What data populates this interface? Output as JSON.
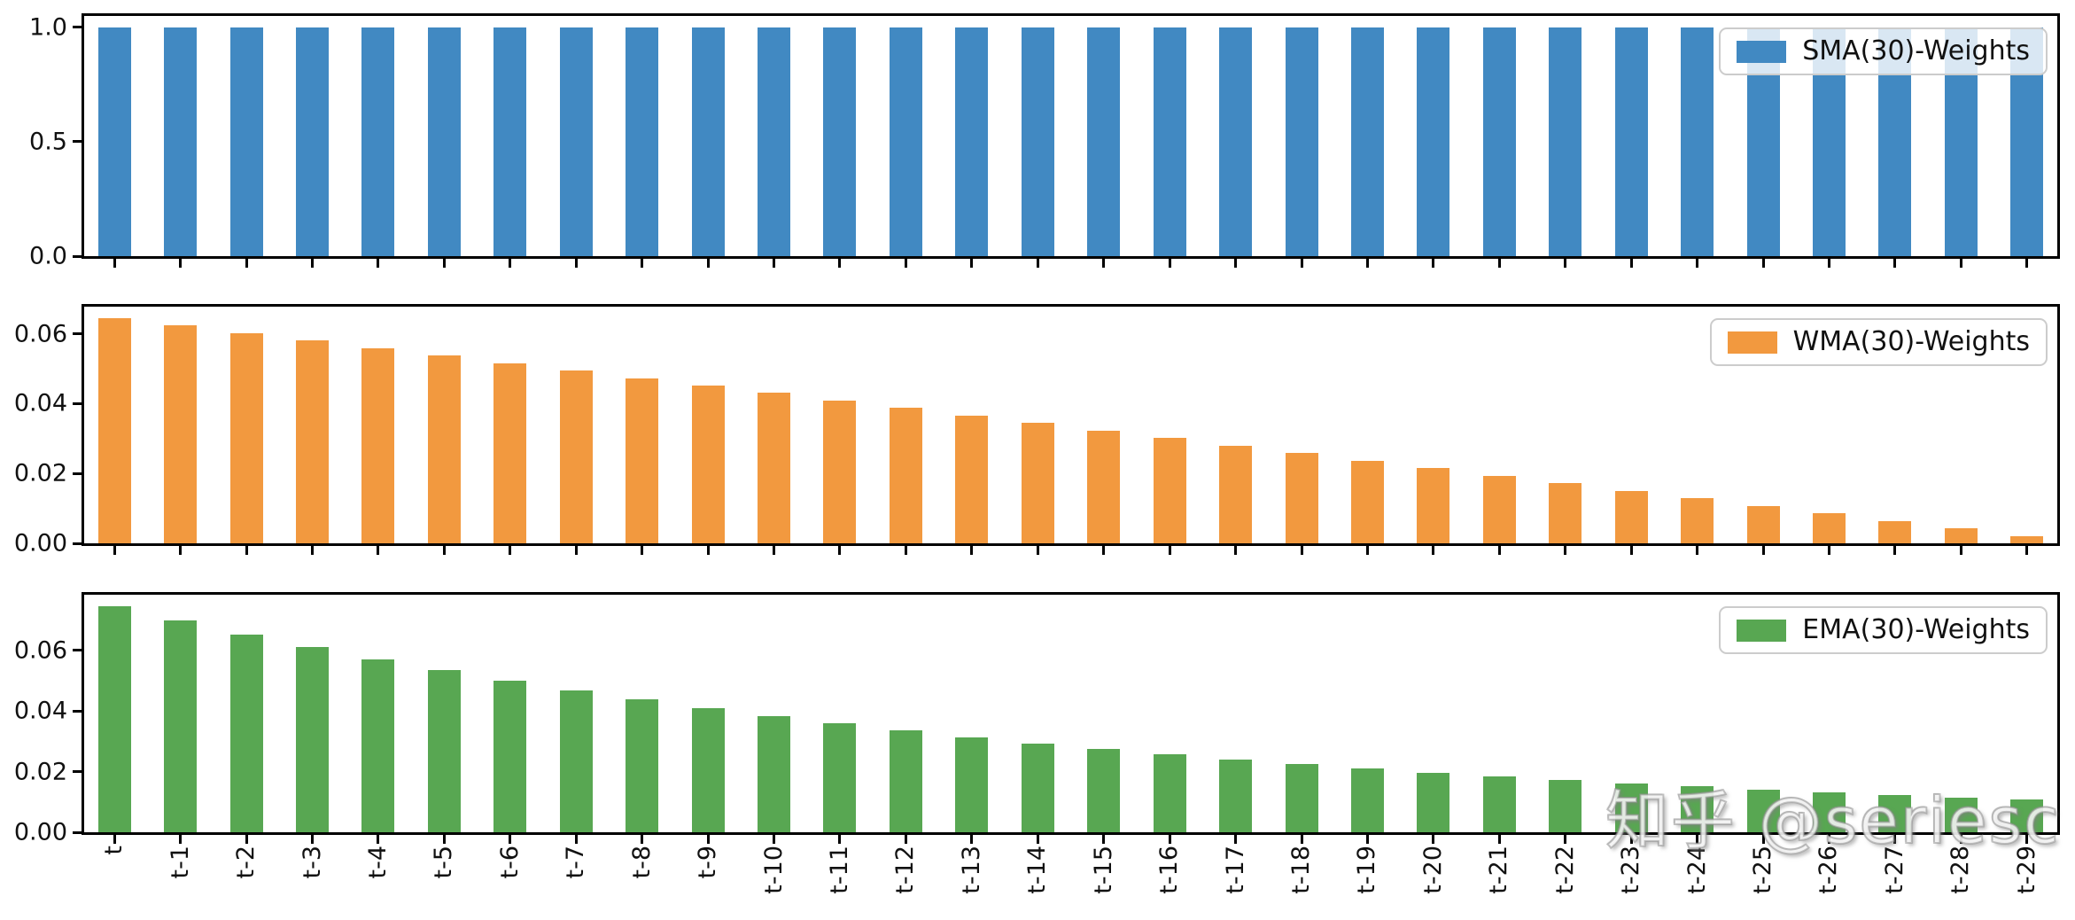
{
  "watermark": "知乎 @seriesc",
  "colors": {
    "sma": "#4189c2",
    "wma": "#f2993f",
    "ema": "#58a752",
    "axis": "#000000",
    "legend_border": "#cccccc",
    "legend_background": "rgba(255,255,255,0.8)"
  },
  "chart_data": [
    {
      "type": "bar",
      "legend": "SMA(30)-Weights",
      "legend_position": "upper right",
      "grid": false,
      "color_key": "sma",
      "categories": [
        "t",
        "t-1",
        "t-2",
        "t-3",
        "t-4",
        "t-5",
        "t-6",
        "t-7",
        "t-8",
        "t-9",
        "t-10",
        "t-11",
        "t-12",
        "t-13",
        "t-14",
        "t-15",
        "t-16",
        "t-17",
        "t-18",
        "t-19",
        "t-20",
        "t-21",
        "t-22",
        "t-23",
        "t-24",
        "t-25",
        "t-26",
        "t-27",
        "t-28",
        "t-29"
      ],
      "values": [
        1.0,
        1.0,
        1.0,
        1.0,
        1.0,
        1.0,
        1.0,
        1.0,
        1.0,
        1.0,
        1.0,
        1.0,
        1.0,
        1.0,
        1.0,
        1.0,
        1.0,
        1.0,
        1.0,
        1.0,
        1.0,
        1.0,
        1.0,
        1.0,
        1.0,
        1.0,
        1.0,
        1.0,
        1.0,
        1.0
      ],
      "yticks": [
        0.0,
        0.5,
        1.0
      ],
      "ytick_labels": [
        "0.0",
        "0.5",
        "1.0"
      ],
      "ylim": [
        0,
        1.05
      ],
      "x_labels_visible": false
    },
    {
      "type": "bar",
      "legend": "WMA(30)-Weights",
      "legend_position": "upper right",
      "grid": false,
      "color_key": "wma",
      "categories": [
        "t",
        "t-1",
        "t-2",
        "t-3",
        "t-4",
        "t-5",
        "t-6",
        "t-7",
        "t-8",
        "t-9",
        "t-10",
        "t-11",
        "t-12",
        "t-13",
        "t-14",
        "t-15",
        "t-16",
        "t-17",
        "t-18",
        "t-19",
        "t-20",
        "t-21",
        "t-22",
        "t-23",
        "t-24",
        "t-25",
        "t-26",
        "t-27",
        "t-28",
        "t-29"
      ],
      "values": [
        0.06452,
        0.06237,
        0.06022,
        0.05806,
        0.05591,
        0.05376,
        0.05161,
        0.04946,
        0.04731,
        0.04516,
        0.04301,
        0.04086,
        0.03871,
        0.03656,
        0.03441,
        0.03226,
        0.03011,
        0.02796,
        0.02581,
        0.02366,
        0.02151,
        0.01935,
        0.0172,
        0.01505,
        0.0129,
        0.01075,
        0.0086,
        0.00645,
        0.0043,
        0.00215
      ],
      "yticks": [
        0.0,
        0.02,
        0.04,
        0.06
      ],
      "ytick_labels": [
        "0.00",
        "0.02",
        "0.04",
        "0.06"
      ],
      "ylim": [
        0,
        0.06774
      ],
      "x_labels_visible": false
    },
    {
      "type": "bar",
      "legend": "EMA(30)-Weights",
      "legend_position": "upper right",
      "grid": false,
      "color_key": "ema",
      "categories": [
        "t",
        "t-1",
        "t-2",
        "t-3",
        "t-4",
        "t-5",
        "t-6",
        "t-7",
        "t-8",
        "t-9",
        "t-10",
        "t-11",
        "t-12",
        "t-13",
        "t-14",
        "t-15",
        "t-16",
        "t-17",
        "t-18",
        "t-19",
        "t-20",
        "t-21",
        "t-22",
        "t-23",
        "t-24",
        "t-25",
        "t-26",
        "t-27",
        "t-28",
        "t-29"
      ],
      "values": [
        0.07461,
        0.06979,
        0.06529,
        0.06108,
        0.05714,
        0.05345,
        0.05,
        0.04678,
        0.04376,
        0.04094,
        0.0383,
        0.03583,
        0.03352,
        0.03135,
        0.02933,
        0.02744,
        0.02567,
        0.02401,
        0.02246,
        0.02101,
        0.01966,
        0.01839,
        0.0172,
        0.01609,
        0.01506,
        0.01408,
        0.01318,
        0.01233,
        0.01153,
        0.01079
      ],
      "yticks": [
        0.0,
        0.02,
        0.04,
        0.06
      ],
      "ytick_labels": [
        "0.00",
        "0.02",
        "0.04",
        "0.06"
      ],
      "ylim": [
        0,
        0.07834
      ],
      "x_labels_visible": true
    }
  ]
}
